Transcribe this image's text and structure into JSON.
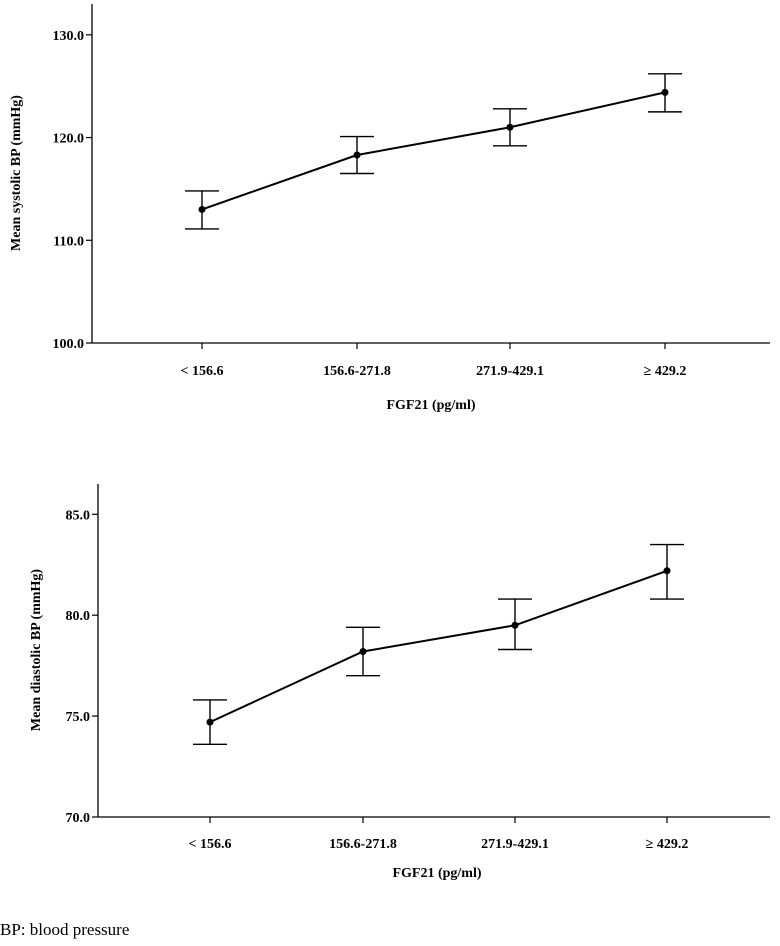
{
  "chart_data": [
    {
      "type": "line",
      "error_bars": true,
      "categories": [
        "< 156.6",
        "156.6-271.8",
        "271.9-429.1",
        "≥ 429.2"
      ],
      "series": [
        {
          "values": [
            113.0,
            118.3,
            121.0,
            124.4
          ],
          "error_low": [
            111.1,
            116.5,
            119.2,
            122.5
          ],
          "error_high": [
            114.8,
            120.1,
            122.8,
            126.2
          ]
        }
      ],
      "xlabel": "FGF21 (pg/ml)",
      "ylabel": "Mean systolic BP (mmHg)",
      "ylim": [
        100,
        133
      ],
      "yticks": [
        100.0,
        110.0,
        120.0,
        130.0
      ],
      "ytick_labels": [
        "100.0",
        "110.0",
        "120.0",
        "130.0"
      ],
      "grid": false
    },
    {
      "type": "line",
      "error_bars": true,
      "categories": [
        "< 156.6",
        "156.6-271.8",
        "271.9-429.1",
        "≥ 429.2"
      ],
      "series": [
        {
          "values": [
            74.7,
            78.2,
            79.5,
            82.2
          ],
          "error_low": [
            73.6,
            77.0,
            78.3,
            80.8
          ],
          "error_high": [
            75.8,
            79.4,
            80.8,
            83.5
          ]
        }
      ],
      "xlabel": "FGF21 (pg/ml)",
      "ylabel": "Mean diastolic BP (mmHg)",
      "ylim": [
        70,
        86.5
      ],
      "yticks": [
        70.0,
        75.0,
        80.0,
        85.0
      ],
      "ytick_labels": [
        "70.0",
        "75.0",
        "80.0",
        "85.0"
      ],
      "grid": false
    }
  ],
  "footnote": "BP: blood pressure"
}
